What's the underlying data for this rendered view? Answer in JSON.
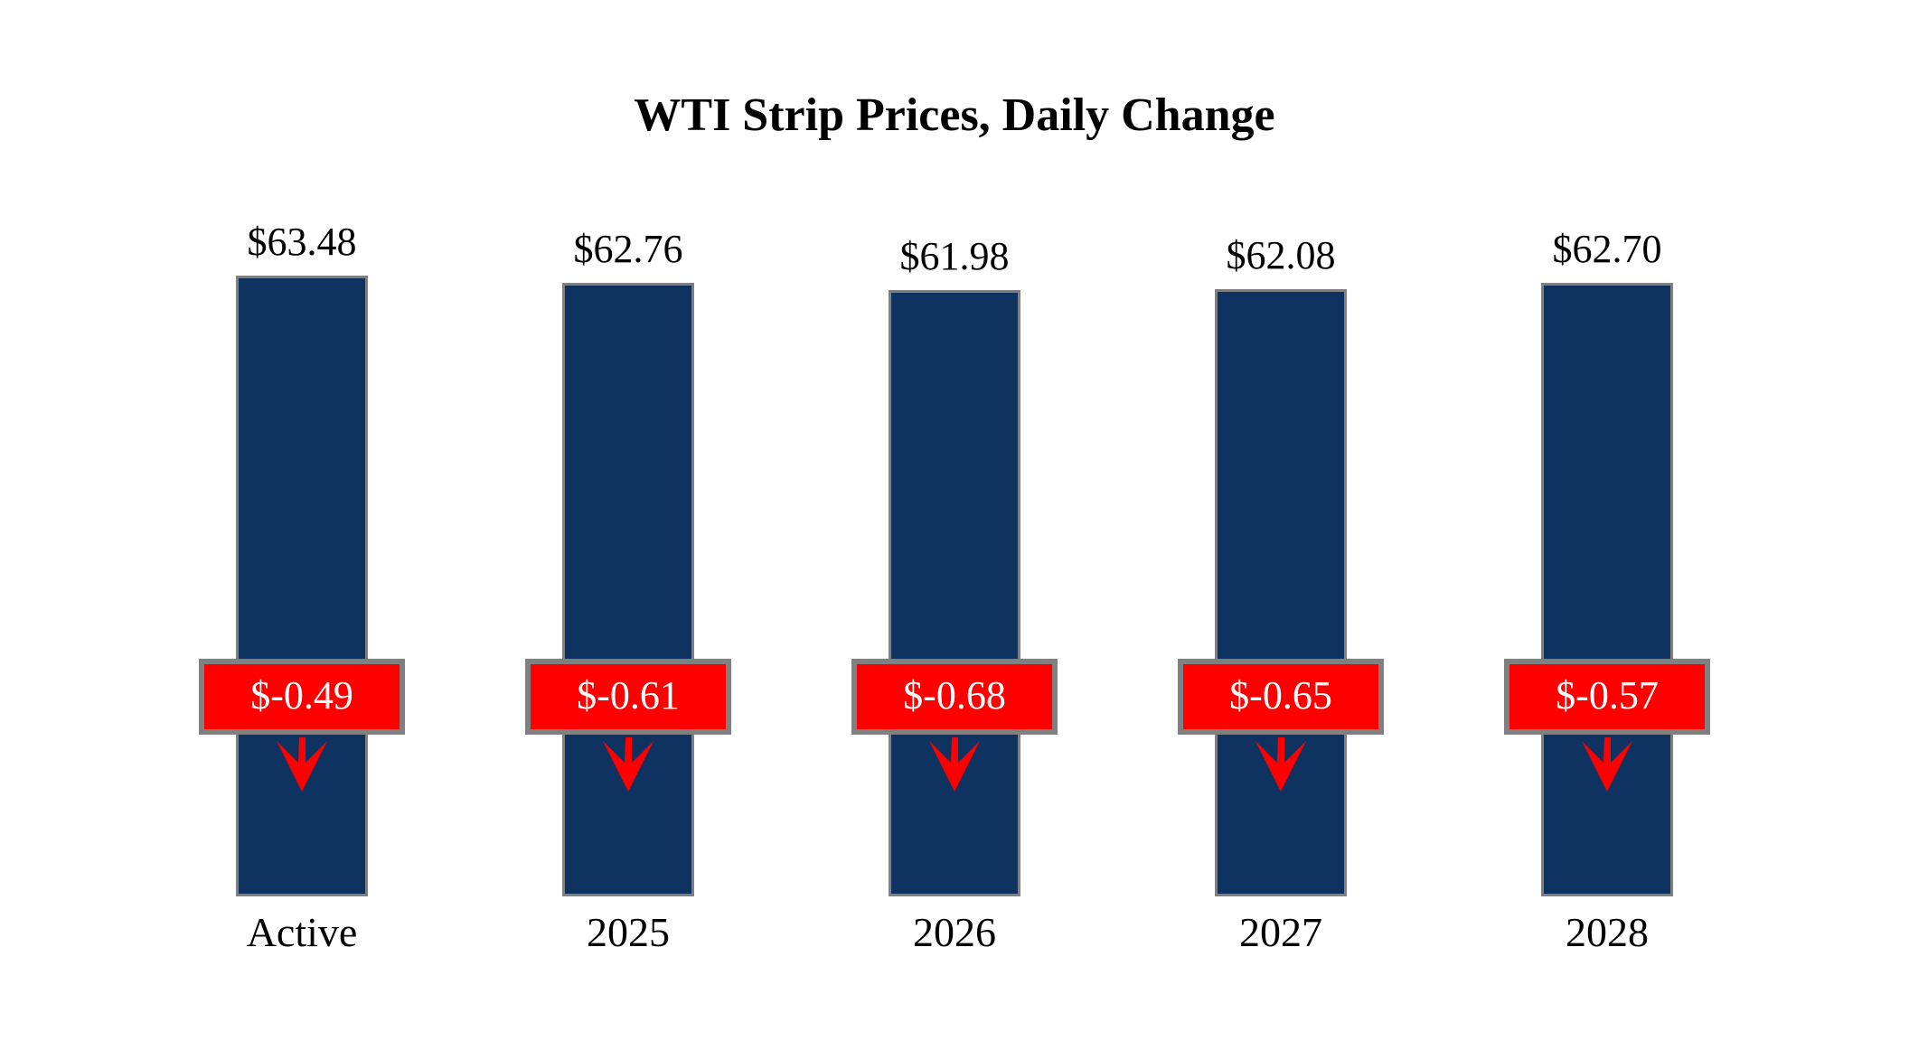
{
  "title": "WTI Strip Prices, Daily Change",
  "colors": {
    "bar": "#0e3361",
    "border": "#808080",
    "change_bg": "#ff0000",
    "change_text": "#ffffff",
    "arrow": "#ff0000",
    "text": "#000000",
    "background": "#ffffff"
  },
  "chart_data": {
    "type": "bar",
    "title": "WTI Strip Prices, Daily Change",
    "categories": [
      "Active",
      "2025",
      "2026",
      "2027",
      "2028"
    ],
    "series": [
      {
        "name": "Strip Price",
        "values": [
          63.48,
          62.76,
          61.98,
          62.08,
          62.7
        ]
      },
      {
        "name": "Daily Change",
        "values": [
          -0.49,
          -0.61,
          -0.68,
          -0.65,
          -0.57
        ]
      }
    ],
    "data_labels": {
      "price": [
        "$63.48",
        "$62.76",
        "$61.98",
        "$62.08",
        "$62.70"
      ],
      "change": [
        "$-0.49",
        "$-0.61",
        "$-0.68",
        "$-0.65",
        "$-0.57"
      ]
    },
    "xlabel": "",
    "ylabel": "",
    "ylim": [
      0,
      63.48
    ],
    "grid": false,
    "legend": false,
    "annotations": "each bar overlaid with red daily-change callout box and red down arrow"
  },
  "bars": [
    {
      "category": "Active",
      "price_label": "$63.48",
      "change_label": "$-0.49",
      "direction": "down"
    },
    {
      "category": "2025",
      "price_label": "$62.76",
      "change_label": "$-0.61",
      "direction": "down"
    },
    {
      "category": "2026",
      "price_label": "$61.98",
      "change_label": "$-0.68",
      "direction": "down"
    },
    {
      "category": "2027",
      "price_label": "$62.08",
      "change_label": "$-0.65",
      "direction": "down"
    },
    {
      "category": "2028",
      "price_label": "$62.70",
      "change_label": "$-0.57",
      "direction": "down"
    }
  ]
}
